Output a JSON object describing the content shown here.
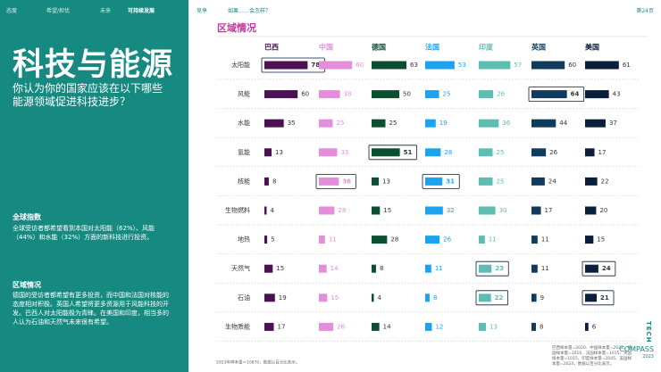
{
  "nav": {
    "left": [
      "态度",
      "希望/担忧",
      "未来",
      "可持续发展"
    ],
    "active": 3,
    "right": [
      "竞争",
      "如果……会怎样？"
    ],
    "page": "第24页"
  },
  "sidebar": {
    "title": "科技与能源",
    "question": "你认为你的国家应该在以下哪些能源领域促进科技进步？",
    "sections": [
      {
        "heading": "全球指数",
        "text": "全球受访者都希望看到本国对太阳能（62%）、风能（44%）和水能（32%）方面的新科技进行投资。"
      },
      {
        "heading": "区域情况",
        "text": "德国的受访者都希望有更多投资，而中国和法国对核能的态度相对积极。英国人希望将更多资源用于风能科技的开发。巴西人对太阳能极为青睐。在美国和印度，相当多的人认为石油和天然气未来很有希望。"
      }
    ]
  },
  "main": {
    "heading": "区域情况",
    "countries": [
      {
        "name": "巴西",
        "color": "#4b1152",
        "label_color": "#333333"
      },
      {
        "name": "中国",
        "color": "#e38ddb",
        "label_color": "#e38ddb"
      },
      {
        "name": "德国",
        "color": "#0c4f30",
        "label_color": "#333333"
      },
      {
        "name": "法国",
        "color": "#1ba3f0",
        "label_color": "#1ba3f0"
      },
      {
        "name": "印度",
        "color": "#5dbdb1",
        "label_color": "#5dbdb1"
      },
      {
        "name": "英国",
        "color": "#0f3b5e",
        "label_color": "#333333"
      },
      {
        "name": "美国",
        "color": "#0a1f3b",
        "label_color": "#333333"
      }
    ],
    "rows": [
      {
        "label": "太阳能",
        "values": [
          78,
          60,
          63,
          53,
          57,
          60,
          61
        ],
        "highlight": [
          0
        ]
      },
      {
        "label": "风能",
        "values": [
          60,
          38,
          50,
          25,
          26,
          64,
          43
        ],
        "highlight": [
          5
        ]
      },
      {
        "label": "水能",
        "values": [
          35,
          25,
          25,
          19,
          36,
          44,
          37
        ],
        "highlight": []
      },
      {
        "label": "氢能",
        "values": [
          13,
          33,
          51,
          28,
          25,
          26,
          17
        ],
        "highlight": [
          2
        ]
      },
      {
        "label": "核能",
        "values": [
          8,
          36,
          13,
          31,
          25,
          24,
          22
        ],
        "highlight": [
          1,
          3
        ]
      },
      {
        "label": "生物燃料",
        "values": [
          4,
          28,
          15,
          32,
          30,
          17,
          20
        ],
        "highlight": []
      },
      {
        "label": "地热",
        "values": [
          5,
          11,
          28,
          26,
          11,
          11,
          15
        ],
        "highlight": []
      },
      {
        "label": "天然气",
        "values": [
          15,
          14,
          8,
          11,
          23,
          11,
          24
        ],
        "highlight": [
          4,
          6
        ]
      },
      {
        "label": "石油",
        "values": [
          19,
          15,
          4,
          8,
          22,
          9,
          21
        ],
        "highlight": [
          4,
          6
        ]
      },
      {
        "label": "生物质能",
        "values": [
          17,
          26,
          14,
          12,
          13,
          8,
          6
        ],
        "highlight": []
      }
    ],
    "footnote_left": "2023年样本量＝10870，数据以百分比表示。",
    "footnote_right": "巴西样本量=2020、中国样本量=2022、德国样本量=1016、法国样本量=1015、英国样本量=1015、印度样本量=2045、美国样本量=2024，数据以百分比表示。"
  },
  "logo": [
    "TECH",
    "COMPASS",
    "2023"
  ]
}
